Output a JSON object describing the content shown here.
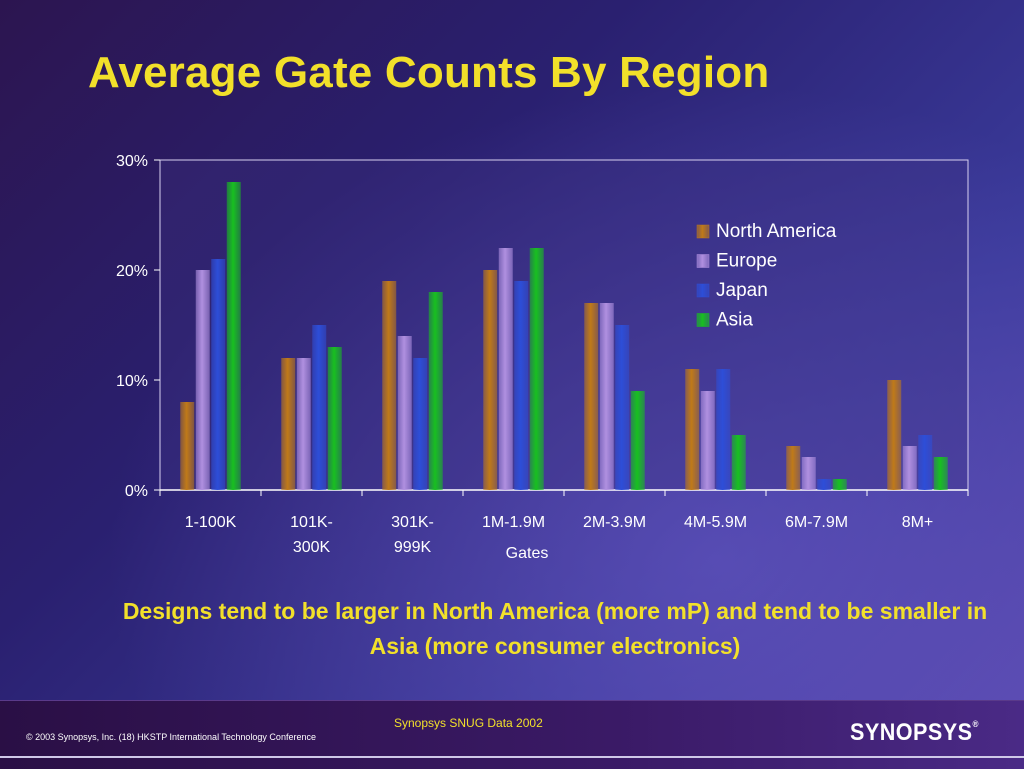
{
  "title": "Average Gate Counts By Region",
  "caption": "Designs tend to be larger in North America (more mP) and tend to be smaller in Asia (more consumer electronics)",
  "footer": {
    "source": "Synopsys SNUG Data 2002",
    "copyright": "© 2003 Synopsys, Inc. (18) HKSTP International Technology Conference",
    "logo": "SYNOPSYS",
    "logo_mark": "®"
  },
  "chart_data": {
    "type": "bar",
    "title": "",
    "xlabel": "Gates",
    "ylabel": "",
    "ylim": [
      0,
      30
    ],
    "yticks": [
      "0%",
      "10%",
      "20%",
      "30%"
    ],
    "categories": [
      [
        "1-100K"
      ],
      [
        "101K-",
        "300K"
      ],
      [
        "301K-",
        "999K"
      ],
      [
        "1M-1.9M"
      ],
      [
        "2M-3.9M"
      ],
      [
        "4M-5.9M"
      ],
      [
        "6M-7.9M"
      ],
      [
        "8M+"
      ]
    ],
    "series": [
      {
        "name": "North America",
        "color": "#c07a18",
        "values": [
          8,
          12,
          19,
          20,
          17,
          11,
          4,
          10
        ]
      },
      {
        "name": "Europe",
        "color": "#b090e0",
        "values": [
          20,
          12,
          14,
          22,
          17,
          9,
          3,
          4
        ]
      },
      {
        "name": "Japan",
        "color": "#2d4ed8",
        "values": [
          21,
          15,
          12,
          19,
          15,
          11,
          1,
          5
        ]
      },
      {
        "name": "Asia",
        "color": "#18c020",
        "values": [
          28,
          13,
          18,
          22,
          9,
          5,
          1,
          3
        ]
      }
    ],
    "legend": "top-right",
    "grid": false
  }
}
